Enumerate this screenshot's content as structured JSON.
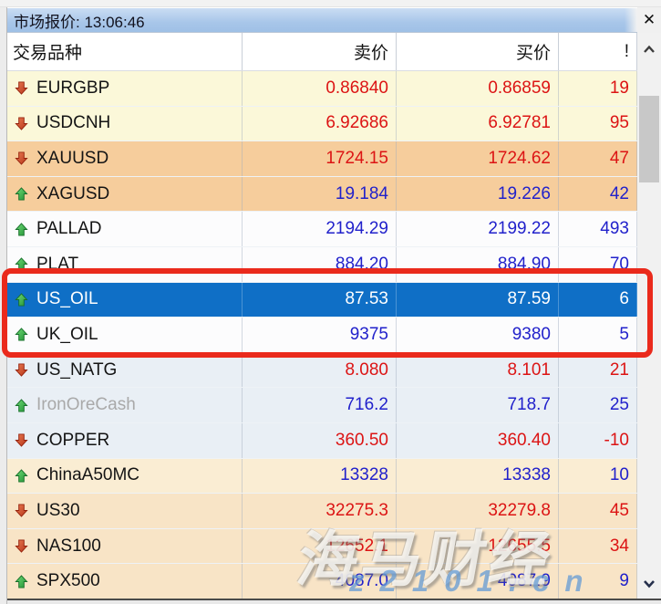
{
  "window": {
    "title": "市场报价: 13:06:46",
    "close_label": "✕"
  },
  "header": {
    "columns": [
      "交易品种",
      "卖价",
      "买价",
      "!"
    ]
  },
  "rows": [
    {
      "symbol": "EURGBP",
      "trend": "down",
      "sell": "0.86840",
      "buy": "0.86859",
      "excl": "19",
      "tone": "red",
      "bg": "yellow"
    },
    {
      "symbol": "USDCNH",
      "trend": "down",
      "sell": "6.92686",
      "buy": "6.92781",
      "excl": "95",
      "tone": "red",
      "bg": "yellow"
    },
    {
      "symbol": "XAUUSD",
      "trend": "down",
      "sell": "1724.15",
      "buy": "1724.62",
      "excl": "47",
      "tone": "red",
      "bg": "orange"
    },
    {
      "symbol": "XAGUSD",
      "trend": "up",
      "sell": "19.184",
      "buy": "19.226",
      "excl": "42",
      "tone": "blue",
      "bg": "orange"
    },
    {
      "symbol": "PALLAD",
      "trend": "up",
      "sell": "2194.29",
      "buy": "2199.22",
      "excl": "493",
      "tone": "blue",
      "bg": "white"
    },
    {
      "symbol": "PLAT",
      "trend": "up",
      "sell": "884.20",
      "buy": "884.90",
      "excl": "70",
      "tone": "blue",
      "bg": "white"
    },
    {
      "symbol": "US_OIL",
      "trend": "up",
      "sell": "87.53",
      "buy": "87.59",
      "excl": "6",
      "tone": "white",
      "bg": "selected",
      "selected": true
    },
    {
      "symbol": "UK_OIL",
      "trend": "up",
      "sell": "9375",
      "buy": "9380",
      "excl": "5",
      "tone": "blue",
      "bg": "white"
    },
    {
      "symbol": "US_NATG",
      "trend": "down",
      "sell": "8.080",
      "buy": "8.101",
      "excl": "21",
      "tone": "red",
      "bg": "bluegray"
    },
    {
      "symbol": "IronOreCash",
      "trend": "up",
      "sell": "716.2",
      "buy": "718.7",
      "excl": "25",
      "tone": "blue",
      "bg": "bluegray",
      "muted": true
    },
    {
      "symbol": "COPPER",
      "trend": "down",
      "sell": "360.50",
      "buy": "360.40",
      "excl": "-10",
      "tone": "red",
      "bg": "bluegray"
    },
    {
      "symbol": "ChinaA50MC",
      "trend": "up",
      "sell": "13328",
      "buy": "13338",
      "excl": "10",
      "tone": "blue",
      "bg": "cream1"
    },
    {
      "symbol": "US30",
      "trend": "down",
      "sell": "32275.3",
      "buy": "32279.8",
      "excl": "45",
      "tone": "red",
      "bg": "cream2"
    },
    {
      "symbol": "NAS100",
      "trend": "down",
      "sell": "12652.1",
      "buy": "12655.5",
      "excl": "34",
      "tone": "red",
      "bg": "cream2"
    },
    {
      "symbol": "SPX500",
      "trend": "up",
      "sell": "4087.0",
      "buy": "4087.9",
      "excl": "9",
      "tone": "blue",
      "bg": "cream2"
    }
  ],
  "watermark": {
    "line1": "海马财经",
    "line2": "z2101.cn"
  },
  "colors": {
    "selection": "#0F6FC6",
    "price_up_blue": "#2121CB",
    "price_down_red": "#DC1414",
    "annotation_red": "#EA2A1C",
    "titlebar_blue": "#A8C6E9"
  }
}
